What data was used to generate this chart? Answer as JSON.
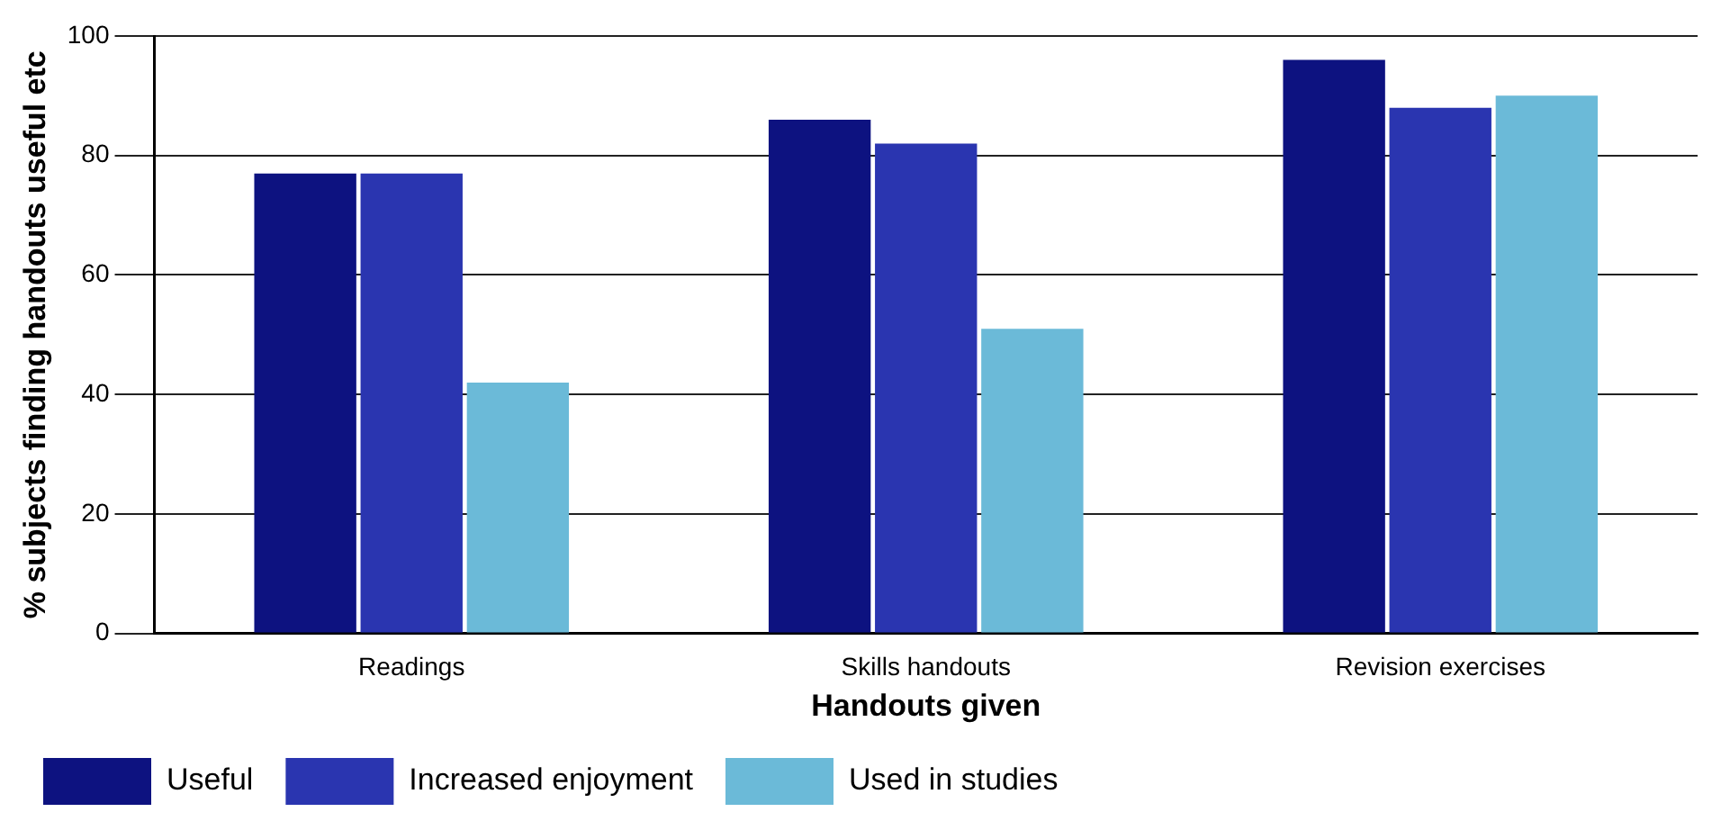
{
  "chart_data": {
    "type": "bar",
    "xlabel": "Handouts given",
    "ylabel": "% subjects finding handouts useful etc",
    "categories": [
      "Readings",
      "Skills handouts",
      "Revision exercises"
    ],
    "series": [
      {
        "name": "Useful",
        "color": "#0d1280",
        "values": [
          77,
          86,
          96
        ]
      },
      {
        "name": "Increased enjoyment",
        "color": "#2a35b0",
        "values": [
          77,
          82,
          88
        ]
      },
      {
        "name": "Used in studies",
        "color": "#6bbad8",
        "values": [
          42,
          51,
          90
        ]
      }
    ],
    "ylim": [
      0,
      100
    ],
    "yticks": [
      0,
      20,
      40,
      60,
      80,
      100
    ],
    "grid": "y",
    "legend": "bottom"
  }
}
